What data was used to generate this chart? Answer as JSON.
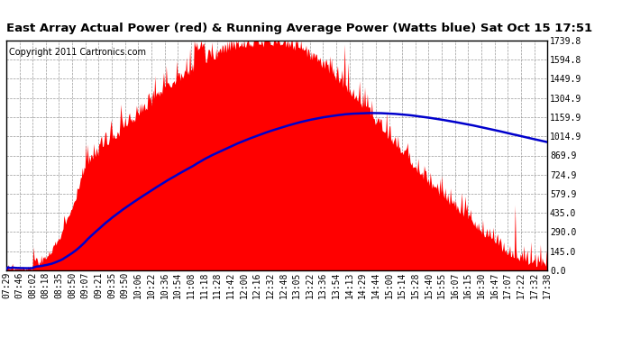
{
  "title": "East Array Actual Power (red) & Running Average Power (Watts blue) Sat Oct 15 17:51",
  "copyright": "Copyright 2011 Cartronics.com",
  "yticks": [
    0.0,
    145.0,
    290.0,
    435.0,
    579.9,
    724.9,
    869.9,
    1014.9,
    1159.9,
    1304.9,
    1449.9,
    1594.8,
    1739.8
  ],
  "ymax": 1739.8,
  "ymin": 0.0,
  "xtick_labels": [
    "07:29",
    "07:46",
    "08:02",
    "08:18",
    "08:35",
    "08:50",
    "09:07",
    "09:21",
    "09:35",
    "09:50",
    "10:06",
    "10:22",
    "10:36",
    "10:54",
    "11:08",
    "11:18",
    "11:28",
    "11:42",
    "12:00",
    "12:16",
    "12:32",
    "12:48",
    "13:05",
    "13:22",
    "13:36",
    "13:54",
    "14:13",
    "14:29",
    "14:44",
    "15:00",
    "15:14",
    "15:28",
    "15:40",
    "15:55",
    "16:07",
    "16:15",
    "16:30",
    "16:47",
    "17:07",
    "17:22",
    "17:32",
    "17:38"
  ],
  "bg_color": "#ffffff",
  "plot_bg": "#ffffff",
  "grid_color": "#999999",
  "fill_color": "#ff0000",
  "avg_line_color": "#0000cc",
  "title_fontsize": 9.5,
  "copyright_fontsize": 7,
  "tick_fontsize": 7
}
